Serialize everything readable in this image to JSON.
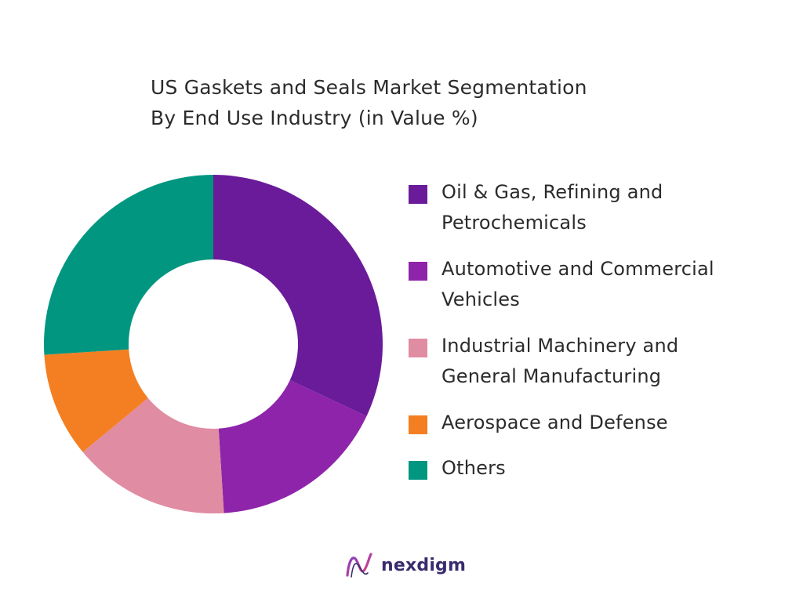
{
  "title_line1": "US Gaskets and Seals Market Segmentation",
  "title_line2": "By End Use Industry (in Value %)",
  "brand": {
    "name": "nexdigm",
    "logo_icon": "nexdigm-logo-icon"
  },
  "chart_data": {
    "type": "pie",
    "variant": "donut",
    "title": "US Gaskets and Seals Market Segmentation By End Use Industry (in Value %)",
    "legend_position": "right",
    "series": [
      {
        "name": "Oil & Gas, Refining and Petrochemicals",
        "value": 32,
        "color": "#6a1b9a"
      },
      {
        "name": "Automotive and Commercial Vehicles",
        "value": 17,
        "color": "#8e24aa"
      },
      {
        "name": "Industrial Machinery and General Manufacturing",
        "value": 15,
        "color": "#e08ca2"
      },
      {
        "name": "Aerospace and Defense",
        "value": 10,
        "color": "#f47f22"
      },
      {
        "name": "Others",
        "value": 26,
        "color": "#00967f"
      }
    ]
  }
}
